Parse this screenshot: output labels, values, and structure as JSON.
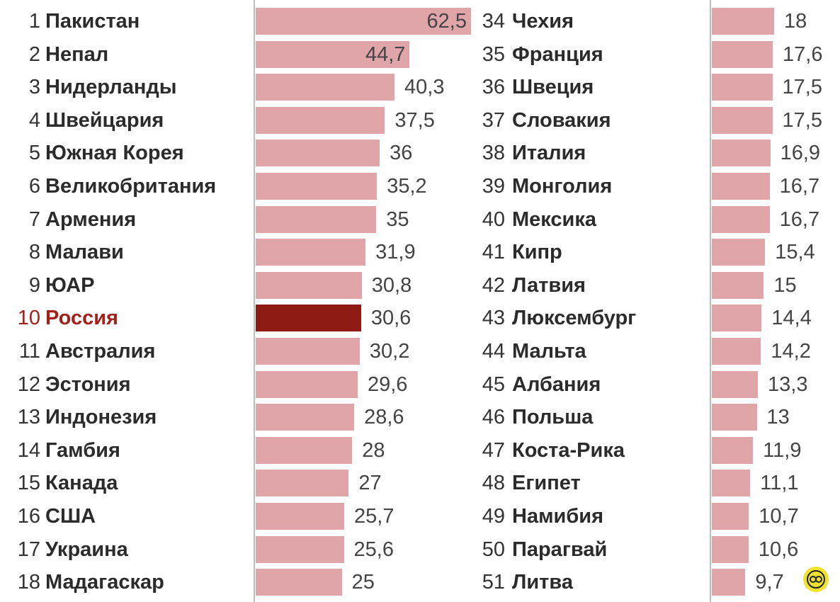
{
  "chart_data": [
    {
      "type": "bar",
      "orientation": "horizontal",
      "title": "",
      "xlabel": "",
      "ylabel": "",
      "highlight_color": "#8e1a14",
      "bar_color": "#e0a5a8",
      "rows": [
        {
          "rank": "1",
          "name": "Пакистан",
          "value": 62.5,
          "label": "62,5"
        },
        {
          "rank": "2",
          "name": "Непал",
          "value": 44.7,
          "label": "44,7"
        },
        {
          "rank": "3",
          "name": "Нидерланды",
          "value": 40.3,
          "label": "40,3"
        },
        {
          "rank": "4",
          "name": "Швейцария",
          "value": 37.5,
          "label": "37,5"
        },
        {
          "rank": "5",
          "name": "Южная Корея",
          "value": 36,
          "label": "36"
        },
        {
          "rank": "6",
          "name": "Великобритания",
          "value": 35.2,
          "label": "35,2"
        },
        {
          "rank": "7",
          "name": "Армения",
          "value": 35,
          "label": "35"
        },
        {
          "rank": "8",
          "name": "Малави",
          "value": 31.9,
          "label": "31,9"
        },
        {
          "rank": "9",
          "name": "ЮАР",
          "value": 30.8,
          "label": "30,8"
        },
        {
          "rank": "10",
          "name": "Россия",
          "value": 30.6,
          "label": "30,6",
          "highlight": true
        },
        {
          "rank": "11",
          "name": "Австралия",
          "value": 30.2,
          "label": "30,2"
        },
        {
          "rank": "12",
          "name": "Эстония",
          "value": 29.6,
          "label": "29,6"
        },
        {
          "rank": "13",
          "name": "Индонезия",
          "value": 28.6,
          "label": "28,6"
        },
        {
          "rank": "14",
          "name": "Гамбия",
          "value": 28,
          "label": "28"
        },
        {
          "rank": "15",
          "name": "Канада",
          "value": 27,
          "label": "27"
        },
        {
          "rank": "16",
          "name": "США",
          "value": 25.7,
          "label": "25,7"
        },
        {
          "rank": "17",
          "name": "Украина",
          "value": 25.6,
          "label": "25,6"
        },
        {
          "rank": "18",
          "name": "Мадагаскар",
          "value": 25,
          "label": "25"
        }
      ]
    },
    {
      "type": "bar",
      "orientation": "horizontal",
      "title": "",
      "xlabel": "",
      "ylabel": "",
      "bar_color": "#e0a5a8",
      "rows": [
        {
          "rank": "34",
          "name": "Чехия",
          "value": 18,
          "label": "18"
        },
        {
          "rank": "35",
          "name": "Франция",
          "value": 17.6,
          "label": "17,6"
        },
        {
          "rank": "36",
          "name": "Швеция",
          "value": 17.5,
          "label": "17,5"
        },
        {
          "rank": "37",
          "name": "Словакия",
          "value": 17.5,
          "label": "17,5"
        },
        {
          "rank": "38",
          "name": "Италия",
          "value": 16.9,
          "label": "16,9"
        },
        {
          "rank": "39",
          "name": "Монголия",
          "value": 16.7,
          "label": "16,7"
        },
        {
          "rank": "40",
          "name": "Мексика",
          "value": 16.7,
          "label": "16,7"
        },
        {
          "rank": "41",
          "name": "Кипр",
          "value": 15.4,
          "label": "15,4"
        },
        {
          "rank": "42",
          "name": "Латвия",
          "value": 15,
          "label": "15"
        },
        {
          "rank": "43",
          "name": "Люксембург",
          "value": 14.4,
          "label": "14,4"
        },
        {
          "rank": "44",
          "name": "Мальта",
          "value": 14.2,
          "label": "14,2"
        },
        {
          "rank": "45",
          "name": "Албания",
          "value": 13.3,
          "label": "13,3"
        },
        {
          "rank": "46",
          "name": "Польша",
          "value": 13,
          "label": "13"
        },
        {
          "rank": "47",
          "name": "Коста-Рика",
          "value": 11.9,
          "label": "11,9"
        },
        {
          "rank": "48",
          "name": "Египет",
          "value": 11.1,
          "label": "11,1"
        },
        {
          "rank": "49",
          "name": "Намибия",
          "value": 10.7,
          "label": "10,7"
        },
        {
          "rank": "50",
          "name": "Парагвай",
          "value": 10.6,
          "label": "10,6"
        },
        {
          "rank": "51",
          "name": "Литва",
          "value": 9.7,
          "label": "9,7"
        }
      ]
    }
  ],
  "logo": {
    "icon": "circle-logo-icon",
    "color": "#f2e230"
  }
}
